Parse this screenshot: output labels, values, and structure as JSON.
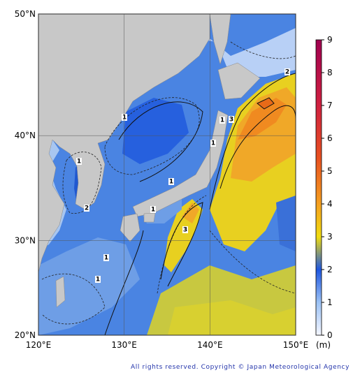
{
  "map": {
    "lat_range": [
      20,
      50
    ],
    "lon_range": [
      120,
      150
    ],
    "lat_ticks": [
      {
        "value": 50,
        "label": "50°N"
      },
      {
        "value": 40,
        "label": "40°N"
      },
      {
        "value": 30,
        "label": "30°N"
      },
      {
        "value": 20,
        "label": "20°N"
      }
    ],
    "lon_ticks": [
      {
        "value": 120,
        "label": "120°E"
      },
      {
        "value": 130,
        "label": "130°E"
      },
      {
        "value": 140,
        "label": "140°E"
      },
      {
        "value": 150,
        "label": "150°E"
      }
    ],
    "contour_labels": [
      "1",
      "1",
      "1",
      "1",
      "1",
      "1",
      "1",
      "1",
      "2",
      "2",
      "3",
      "3"
    ]
  },
  "colorbar": {
    "lim": [
      0,
      9
    ],
    "ticks": [
      0,
      1,
      2,
      3,
      4,
      5,
      6,
      7,
      8,
      9
    ],
    "unit": "(m)"
  },
  "copyright": "All rights reserved. Copyright © Japan Meteorological Agency"
}
